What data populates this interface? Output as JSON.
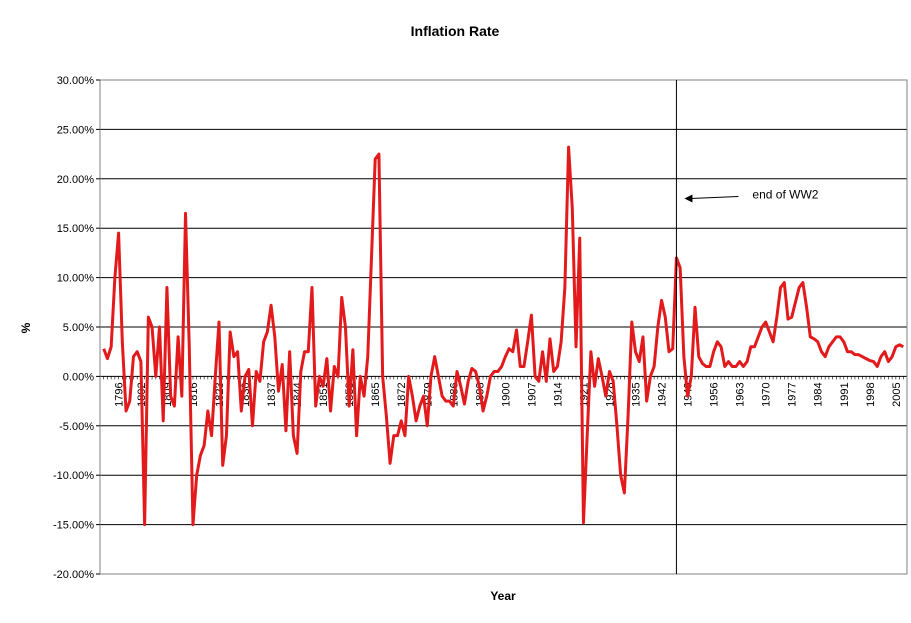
{
  "chart_data": {
    "type": "line",
    "title": "Inflation Rate",
    "xlabel": "Year",
    "ylabel": "%",
    "ylim": [
      -0.2,
      0.3
    ],
    "xlim": [
      1791,
      2008
    ],
    "y_ticks": [
      "30.00%",
      "25.00%",
      "20.00%",
      "15.00%",
      "10.00%",
      "5.00%",
      "0.00%",
      "-5.00%",
      "-10.00%",
      "-15.00%",
      "-20.00%"
    ],
    "x_ticks": [
      "1796",
      "1802",
      "1809",
      "1816",
      "1823",
      "1830",
      "1837",
      "1844",
      "1851",
      "1858",
      "1865",
      "1872",
      "1879",
      "1886",
      "1893",
      "1900",
      "1907",
      "1914",
      "1921",
      "1928",
      "1935",
      "1942",
      "1949",
      "1956",
      "1963",
      "1970",
      "1977",
      "1984",
      "1991",
      "1998",
      "2005"
    ],
    "grid": "horizontal",
    "line_color": "#e31a1c",
    "annotation": {
      "text": "end of WW2",
      "year": 1946
    },
    "series": [
      {
        "values": [
          [
            1792,
            0.028
          ],
          [
            1793,
            0.018
          ],
          [
            1794,
            0.03
          ],
          [
            1795,
            0.1
          ],
          [
            1796,
            0.145
          ],
          [
            1797,
            0.035
          ],
          [
            1798,
            -0.035
          ],
          [
            1799,
            -0.025
          ],
          [
            1800,
            0.02
          ],
          [
            1801,
            0.025
          ],
          [
            1802,
            0.015
          ],
          [
            1803,
            -0.15
          ],
          [
            1804,
            0.06
          ],
          [
            1805,
            0.05
          ],
          [
            1806,
            0.0
          ],
          [
            1807,
            0.05
          ],
          [
            1808,
            -0.045
          ],
          [
            1809,
            0.09
          ],
          [
            1810,
            -0.02
          ],
          [
            1811,
            -0.03
          ],
          [
            1812,
            0.04
          ],
          [
            1813,
            -0.02
          ],
          [
            1814,
            0.165
          ],
          [
            1815,
            0.03
          ],
          [
            1816,
            -0.15
          ],
          [
            1817,
            -0.1
          ],
          [
            1818,
            -0.08
          ],
          [
            1819,
            -0.07
          ],
          [
            1820,
            -0.035
          ],
          [
            1821,
            -0.06
          ],
          [
            1822,
            0.0
          ],
          [
            1823,
            0.055
          ],
          [
            1824,
            -0.09
          ],
          [
            1825,
            -0.06
          ],
          [
            1826,
            0.045
          ],
          [
            1827,
            0.02
          ],
          [
            1828,
            0.025
          ],
          [
            1829,
            -0.035
          ],
          [
            1830,
            0.0
          ],
          [
            1831,
            0.007
          ],
          [
            1832,
            -0.05
          ],
          [
            1833,
            0.005
          ],
          [
            1834,
            -0.005
          ],
          [
            1835,
            0.035
          ],
          [
            1836,
            0.045
          ],
          [
            1837,
            0.072
          ],
          [
            1838,
            0.04
          ],
          [
            1839,
            -0.015
          ],
          [
            1840,
            0.012
          ],
          [
            1841,
            -0.055
          ],
          [
            1842,
            0.025
          ],
          [
            1843,
            -0.06
          ],
          [
            1844,
            -0.078
          ],
          [
            1845,
            0.005
          ],
          [
            1846,
            0.025
          ],
          [
            1847,
            0.025
          ],
          [
            1848,
            0.09
          ],
          [
            1849,
            -0.03
          ],
          [
            1850,
            0.0
          ],
          [
            1851,
            -0.01
          ],
          [
            1852,
            0.018
          ],
          [
            1853,
            -0.035
          ],
          [
            1854,
            0.01
          ],
          [
            1855,
            0.0
          ],
          [
            1856,
            0.08
          ],
          [
            1857,
            0.05
          ],
          [
            1858,
            -0.03
          ],
          [
            1859,
            0.027
          ],
          [
            1860,
            -0.06
          ],
          [
            1861,
            0.0
          ],
          [
            1862,
            -0.02
          ],
          [
            1863,
            0.02
          ],
          [
            1864,
            0.12
          ],
          [
            1865,
            0.22
          ],
          [
            1866,
            0.225
          ],
          [
            1867,
            0.0
          ],
          [
            1868,
            -0.04
          ],
          [
            1869,
            -0.088
          ],
          [
            1870,
            -0.06
          ],
          [
            1871,
            -0.06
          ],
          [
            1872,
            -0.045
          ],
          [
            1873,
            -0.06
          ],
          [
            1874,
            0.0
          ],
          [
            1875,
            -0.02
          ],
          [
            1876,
            -0.045
          ],
          [
            1877,
            -0.03
          ],
          [
            1878,
            -0.02
          ],
          [
            1879,
            -0.05
          ],
          [
            1880,
            0.0
          ],
          [
            1881,
            0.02
          ],
          [
            1882,
            0.0
          ],
          [
            1883,
            -0.02
          ],
          [
            1884,
            -0.025
          ],
          [
            1885,
            -0.025
          ],
          [
            1886,
            -0.03
          ],
          [
            1887,
            0.005
          ],
          [
            1888,
            -0.01
          ],
          [
            1889,
            -0.028
          ],
          [
            1890,
            -0.005
          ],
          [
            1891,
            0.008
          ],
          [
            1892,
            0.005
          ],
          [
            1893,
            -0.01
          ],
          [
            1894,
            -0.035
          ],
          [
            1895,
            -0.02
          ],
          [
            1896,
            0.0
          ],
          [
            1897,
            0.005
          ],
          [
            1898,
            0.005
          ],
          [
            1899,
            0.01
          ],
          [
            1900,
            0.02
          ],
          [
            1901,
            0.028
          ],
          [
            1902,
            0.025
          ],
          [
            1903,
            0.047
          ],
          [
            1904,
            0.01
          ],
          [
            1905,
            0.01
          ],
          [
            1906,
            0.035
          ],
          [
            1907,
            0.062
          ],
          [
            1908,
            0.0
          ],
          [
            1909,
            -0.005
          ],
          [
            1910,
            0.025
          ],
          [
            1911,
            -0.005
          ],
          [
            1912,
            0.038
          ],
          [
            1913,
            0.005
          ],
          [
            1914,
            0.01
          ],
          [
            1915,
            0.035
          ],
          [
            1916,
            0.09
          ],
          [
            1917,
            0.232
          ],
          [
            1918,
            0.17
          ],
          [
            1919,
            0.03
          ],
          [
            1920,
            0.14
          ],
          [
            1921,
            -0.148
          ],
          [
            1922,
            -0.06
          ],
          [
            1923,
            0.025
          ],
          [
            1924,
            -0.01
          ],
          [
            1925,
            0.018
          ],
          [
            1926,
            0.0
          ],
          [
            1927,
            -0.02
          ],
          [
            1928,
            0.005
          ],
          [
            1929,
            -0.005
          ],
          [
            1930,
            -0.05
          ],
          [
            1931,
            -0.1
          ],
          [
            1932,
            -0.118
          ],
          [
            1933,
            -0.04
          ],
          [
            1934,
            0.055
          ],
          [
            1935,
            0.025
          ],
          [
            1936,
            0.015
          ],
          [
            1937,
            0.04
          ],
          [
            1938,
            -0.025
          ],
          [
            1939,
            0.0
          ],
          [
            1940,
            0.01
          ],
          [
            1941,
            0.05
          ],
          [
            1942,
            0.077
          ],
          [
            1943,
            0.06
          ],
          [
            1944,
            0.025
          ],
          [
            1945,
            0.028
          ],
          [
            1946,
            0.12
          ],
          [
            1947,
            0.11
          ],
          [
            1948,
            0.02
          ],
          [
            1949,
            -0.02
          ],
          [
            1950,
            0.0
          ],
          [
            1951,
            0.07
          ],
          [
            1952,
            0.02
          ],
          [
            1953,
            0.013
          ],
          [
            1954,
            0.01
          ],
          [
            1955,
            0.01
          ],
          [
            1956,
            0.025
          ],
          [
            1957,
            0.035
          ],
          [
            1958,
            0.03
          ],
          [
            1959,
            0.01
          ],
          [
            1960,
            0.015
          ],
          [
            1961,
            0.01
          ],
          [
            1962,
            0.01
          ],
          [
            1963,
            0.015
          ],
          [
            1964,
            0.01
          ],
          [
            1965,
            0.015
          ],
          [
            1966,
            0.03
          ],
          [
            1967,
            0.03
          ],
          [
            1968,
            0.04
          ],
          [
            1969,
            0.05
          ],
          [
            1970,
            0.055
          ],
          [
            1971,
            0.045
          ],
          [
            1972,
            0.035
          ],
          [
            1973,
            0.06
          ],
          [
            1974,
            0.09
          ],
          [
            1975,
            0.095
          ],
          [
            1976,
            0.058
          ],
          [
            1977,
            0.06
          ],
          [
            1978,
            0.075
          ],
          [
            1979,
            0.09
          ],
          [
            1980,
            0.095
          ],
          [
            1981,
            0.07
          ],
          [
            1982,
            0.04
          ],
          [
            1983,
            0.038
          ],
          [
            1984,
            0.035
          ],
          [
            1985,
            0.025
          ],
          [
            1986,
            0.02
          ],
          [
            1987,
            0.03
          ],
          [
            1988,
            0.035
          ],
          [
            1989,
            0.04
          ],
          [
            1990,
            0.04
          ],
          [
            1991,
            0.035
          ],
          [
            1992,
            0.025
          ],
          [
            1993,
            0.025
          ],
          [
            1994,
            0.022
          ],
          [
            1995,
            0.022
          ],
          [
            1996,
            0.02
          ],
          [
            1997,
            0.018
          ],
          [
            1998,
            0.016
          ],
          [
            1999,
            0.015
          ],
          [
            2000,
            0.01
          ],
          [
            2001,
            0.02
          ],
          [
            2002,
            0.025
          ],
          [
            2003,
            0.015
          ],
          [
            2004,
            0.02
          ],
          [
            2005,
            0.03
          ],
          [
            2006,
            0.032
          ],
          [
            2007,
            0.03
          ]
        ]
      }
    ]
  }
}
